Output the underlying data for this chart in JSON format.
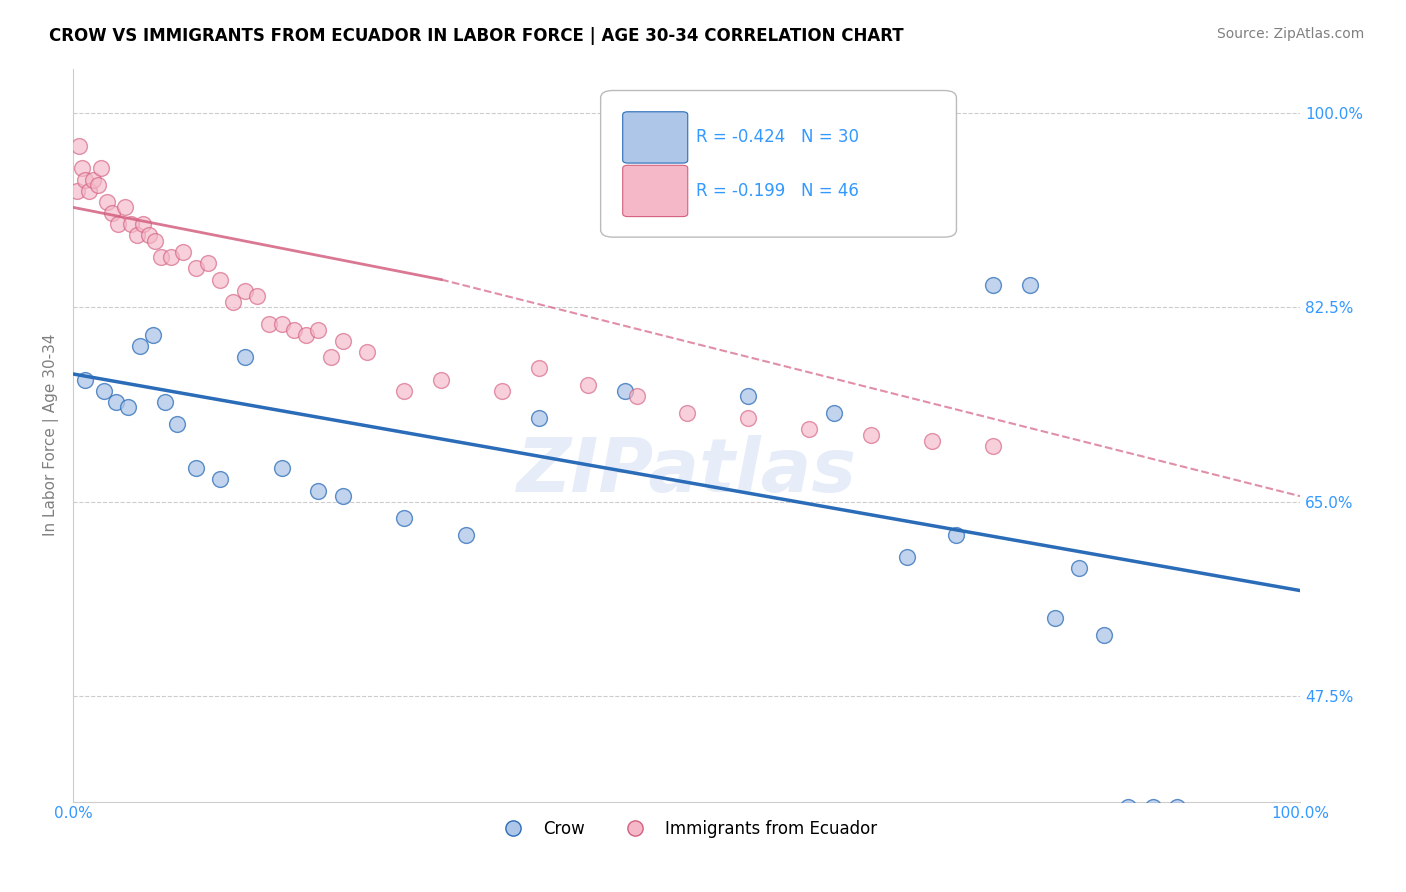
{
  "title": "CROW VS IMMIGRANTS FROM ECUADOR IN LABOR FORCE | AGE 30-34 CORRELATION CHART",
  "source_text": "Source: ZipAtlas.com",
  "ylabel": "In Labor Force | Age 30-34",
  "legend_label1": "Crow",
  "legend_label2": "Immigrants from Ecuador",
  "r1": -0.424,
  "n1": 30,
  "r2": -0.199,
  "n2": 46,
  "color_blue": "#aec6e8",
  "color_pink": "#f4b8c8",
  "color_blue_line": "#2b6cb8",
  "color_pink_line": "#d46080",
  "xmin": 0.0,
  "xmax": 100.0,
  "ymin": 38.0,
  "ymax": 104.0,
  "yticks": [
    47.5,
    65.0,
    82.5,
    100.0
  ],
  "ytick_labels": [
    "47.5%",
    "65.0%",
    "82.5%",
    "100.0%"
  ],
  "xticks": [
    0.0,
    20.0,
    40.0,
    60.0,
    80.0,
    100.0
  ],
  "blue_x": [
    1.0,
    2.5,
    3.5,
    4.5,
    5.5,
    6.5,
    7.5,
    8.5,
    10.0,
    12.0,
    14.0,
    17.0,
    20.0,
    22.0,
    27.0,
    32.0,
    38.0,
    45.0,
    55.0,
    62.0,
    68.0,
    72.0,
    75.0,
    78.0,
    80.0,
    82.0,
    84.0,
    86.0,
    88.0,
    90.0
  ],
  "blue_y": [
    76.0,
    75.0,
    74.0,
    73.5,
    79.0,
    80.0,
    74.0,
    72.0,
    68.0,
    67.0,
    78.0,
    68.0,
    66.0,
    65.5,
    63.5,
    62.0,
    72.5,
    75.0,
    74.5,
    73.0,
    60.0,
    62.0,
    84.5,
    84.5,
    54.5,
    59.0,
    53.0,
    37.5,
    37.5,
    37.5
  ],
  "pink_x": [
    0.3,
    0.5,
    0.7,
    1.0,
    1.3,
    1.6,
    2.0,
    2.3,
    2.8,
    3.2,
    3.7,
    4.2,
    4.7,
    5.2,
    5.7,
    6.2,
    6.7,
    7.2,
    8.0,
    9.0,
    10.0,
    11.0,
    12.0,
    13.0,
    14.0,
    15.0,
    16.0,
    17.0,
    18.0,
    19.0,
    20.0,
    21.0,
    22.0,
    24.0,
    27.0,
    30.0,
    35.0,
    38.0,
    42.0,
    46.0,
    50.0,
    55.0,
    60.0,
    65.0,
    70.0,
    75.0
  ],
  "pink_y": [
    93.0,
    97.0,
    95.0,
    94.0,
    93.0,
    94.0,
    93.5,
    95.0,
    92.0,
    91.0,
    90.0,
    91.5,
    90.0,
    89.0,
    90.0,
    89.0,
    88.5,
    87.0,
    87.0,
    87.5,
    86.0,
    86.5,
    85.0,
    83.0,
    84.0,
    83.5,
    81.0,
    81.0,
    80.5,
    80.0,
    80.5,
    78.0,
    79.5,
    78.5,
    75.0,
    76.0,
    75.0,
    77.0,
    75.5,
    74.5,
    73.0,
    72.5,
    71.5,
    71.0,
    70.5,
    70.0
  ],
  "blue_trendline_x0": 0.0,
  "blue_trendline_y0": 76.5,
  "blue_trendline_x1": 100.0,
  "blue_trendline_y1": 57.0,
  "pink_solid_x0": 0.0,
  "pink_solid_y0": 91.5,
  "pink_solid_x1": 30.0,
  "pink_solid_y1": 85.0,
  "pink_dash_x0": 30.0,
  "pink_dash_y0": 85.0,
  "pink_dash_x1": 100.0,
  "pink_dash_y1": 65.5,
  "watermark": "ZIPatlas",
  "title_fontsize": 12,
  "label_fontsize": 11,
  "tick_fontsize": 11,
  "source_fontsize": 10
}
